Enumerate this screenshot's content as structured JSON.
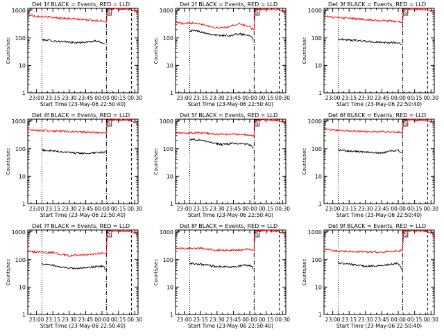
{
  "figure": {
    "background": "#ffffff",
    "events_color": "#000000",
    "lld_color": "#ff0000",
    "axis_color": "#000000"
  },
  "chart_data": [
    {
      "type": "line",
      "title": "Det 1f BLACK = Events, RED = LLD",
      "xlabel": "Start Time (23-May-06 22:50:40)",
      "ylabel": "Counts/sec",
      "yscale": "log",
      "ylim": [
        1,
        1200
      ],
      "xlim": [
        "22:52",
        "00:33"
      ],
      "xticks": [
        "23:00",
        "23:15",
        "23:30",
        "23:45",
        "00:00",
        "00:15",
        "00:30"
      ],
      "yticks": [
        "1",
        "10",
        "100",
        "1000"
      ],
      "marker_label": "S",
      "vlines": [
        {
          "time": "23:05",
          "style": "dotted"
        },
        {
          "time": "00:04",
          "style": "dash-dot"
        },
        {
          "time": "00:27",
          "style": "dashed"
        }
      ],
      "series": [
        {
          "name": "Events",
          "color": "#000000",
          "x": [
            "23:05",
            "23:20",
            "23:35",
            "23:40",
            "23:50",
            "23:55",
            "00:00",
            "00:01",
            "00:02",
            "00:03"
          ],
          "y": [
            86,
            75,
            68,
            68,
            74,
            77,
            66,
            63,
            62,
            60
          ]
        },
        {
          "name": "LLD",
          "color": "#ff0000",
          "x": [
            "22:52",
            "23:00",
            "23:15",
            "23:30",
            "23:45",
            "00:00",
            "00:02",
            "00:04",
            "00:05",
            "00:06",
            "00:14",
            "00:16",
            "00:27",
            "00:28",
            "00:31",
            "00:33"
          ],
          "y": [
            700,
            620,
            560,
            500,
            460,
            420,
            400,
            380,
            1050,
            1130,
            1130,
            1100,
            1100,
            1000,
            900,
            760
          ]
        }
      ]
    },
    {
      "type": "line",
      "title": "Det 2f BLACK = Events, RED = LLD",
      "xlabel": "Start Time (23-May-06 22:50:40)",
      "ylabel": "Counts/sec",
      "yscale": "log",
      "ylim": [
        1,
        1200
      ],
      "xlim": [
        "22:52",
        "00:33"
      ],
      "xticks": [
        "23:00",
        "23:15",
        "23:30",
        "23:45",
        "00:00",
        "00:15",
        "00:30"
      ],
      "yticks": [
        "1",
        "10",
        "100",
        "1000"
      ],
      "marker_label": "S",
      "vlines": [
        {
          "time": "23:05",
          "style": "dotted"
        },
        {
          "time": "00:04",
          "style": "dash-dot"
        },
        {
          "time": "00:27",
          "style": "dashed"
        }
      ],
      "series": [
        {
          "name": "Events",
          "color": "#000000",
          "x": [
            "23:05",
            "23:10",
            "23:20",
            "23:30",
            "23:40",
            "23:50",
            "00:00",
            "00:02",
            "00:03"
          ],
          "y": [
            180,
            190,
            150,
            125,
            120,
            140,
            125,
            110,
            80
          ]
        },
        {
          "name": "LLD",
          "color": "#ff0000",
          "x": [
            "22:52",
            "23:00",
            "23:10",
            "23:20",
            "23:30",
            "23:40",
            "23:50",
            "00:00",
            "00:02",
            "00:04",
            "00:05",
            "00:06",
            "00:14",
            "00:16",
            "00:27",
            "00:28",
            "00:31",
            "00:33"
          ],
          "y": [
            370,
            330,
            360,
            290,
            230,
            250,
            330,
            260,
            210,
            200,
            1050,
            1130,
            1130,
            1100,
            1100,
            1000,
            900,
            760
          ]
        }
      ]
    },
    {
      "type": "line",
      "title": "Det 3f BLACK = Events, RED = LLD",
      "xlabel": "Start Time (23-May-06 22:50:40)",
      "ylabel": "Counts/sec",
      "yscale": "log",
      "ylim": [
        1,
        1200
      ],
      "xlim": [
        "22:52",
        "00:33"
      ],
      "xticks": [
        "23:00",
        "23:15",
        "23:30",
        "23:45",
        "00:00",
        "00:15",
        "00:30"
      ],
      "yticks": [
        "1",
        "10",
        "100",
        "1000"
      ],
      "marker_label": "S",
      "vlines": [
        {
          "time": "23:05",
          "style": "dotted"
        },
        {
          "time": "00:04",
          "style": "dash-dot"
        },
        {
          "time": "00:27",
          "style": "dashed"
        }
      ],
      "series": [
        {
          "name": "Events",
          "color": "#000000",
          "x": [
            "23:05",
            "23:20",
            "23:35",
            "23:45",
            "23:55",
            "00:00",
            "00:02",
            "00:03"
          ],
          "y": [
            90,
            82,
            72,
            68,
            68,
            66,
            60,
            55
          ]
        },
        {
          "name": "LLD",
          "color": "#ff0000",
          "x": [
            "22:52",
            "23:00",
            "23:15",
            "23:30",
            "23:45",
            "00:00",
            "00:02",
            "00:04",
            "00:05",
            "00:06",
            "00:14",
            "00:16",
            "00:27",
            "00:28",
            "00:31",
            "00:33"
          ],
          "y": [
            650,
            560,
            520,
            470,
            430,
            390,
            380,
            350,
            1050,
            1130,
            1130,
            1100,
            1100,
            1000,
            900,
            760
          ]
        }
      ]
    },
    {
      "type": "line",
      "title": "Det 4f BLACK = Events, RED = LLD",
      "xlabel": "Start Time (23-May-06 22:50:40)",
      "ylabel": "Counts/sec",
      "yscale": "log",
      "ylim": [
        1,
        1200
      ],
      "xlim": [
        "22:52",
        "00:33"
      ],
      "xticks": [
        "23:00",
        "23:15",
        "23:30",
        "23:45",
        "00:00",
        "00:15",
        "00:30"
      ],
      "yticks": [
        "1",
        "10",
        "100",
        "1000"
      ],
      "marker_label": "S",
      "vlines": [
        {
          "time": "23:05",
          "style": "dotted"
        },
        {
          "time": "00:04",
          "style": "dash-dot"
        },
        {
          "time": "00:27",
          "style": "dashed"
        }
      ],
      "series": [
        {
          "name": "Events",
          "color": "#000000",
          "x": [
            "23:05",
            "23:20",
            "23:35",
            "23:45",
            "23:55",
            "00:00",
            "00:02",
            "00:03"
          ],
          "y": [
            90,
            80,
            70,
            68,
            70,
            75,
            72,
            85
          ]
        },
        {
          "name": "LLD",
          "color": "#ff0000",
          "x": [
            "22:52",
            "23:00",
            "23:15",
            "23:30",
            "23:45",
            "00:00",
            "00:02",
            "00:04",
            "00:05",
            "00:06",
            "00:14",
            "00:16",
            "00:27",
            "00:28",
            "00:31",
            "00:33"
          ],
          "y": [
            520,
            470,
            450,
            420,
            400,
            390,
            380,
            360,
            1050,
            1130,
            1130,
            1100,
            1100,
            1000,
            900,
            760
          ]
        }
      ]
    },
    {
      "type": "line",
      "title": "Det 5f BLACK = Events, RED = LLD",
      "xlabel": "Start Time (23-May-06 22:50:40)",
      "ylabel": "Counts/sec",
      "yscale": "log",
      "ylim": [
        1,
        1200
      ],
      "xlim": [
        "22:52",
        "00:33"
      ],
      "xticks": [
        "23:00",
        "23:15",
        "23:30",
        "23:45",
        "00:00",
        "00:15",
        "00:30"
      ],
      "yticks": [
        "1",
        "10",
        "100",
        "1000"
      ],
      "marker_label": "S",
      "vlines": [
        {
          "time": "23:05",
          "style": "dotted"
        },
        {
          "time": "00:04",
          "style": "dash-dot"
        },
        {
          "time": "00:27",
          "style": "dashed"
        }
      ],
      "series": [
        {
          "name": "Events",
          "color": "#000000",
          "x": [
            "23:05",
            "23:15",
            "23:25",
            "23:35",
            "23:45",
            "23:55",
            "00:00",
            "00:02",
            "00:03"
          ],
          "y": [
            220,
            210,
            170,
            140,
            160,
            150,
            140,
            120,
            100
          ]
        },
        {
          "name": "LLD",
          "color": "#ff0000",
          "x": [
            "22:52",
            "23:00",
            "23:15",
            "23:30",
            "23:45",
            "00:00",
            "00:02",
            "00:04",
            "00:05",
            "00:06",
            "00:14",
            "00:16",
            "00:27",
            "00:28",
            "00:31",
            "00:33"
          ],
          "y": [
            400,
            380,
            380,
            340,
            340,
            320,
            300,
            290,
            1050,
            1130,
            1130,
            1100,
            1100,
            1000,
            900,
            760
          ]
        }
      ]
    },
    {
      "type": "line",
      "title": "Det 6f BLACK = Events, RED = LLD",
      "xlabel": "Start Time (23-May-06 22:50:40)",
      "ylabel": "Counts/sec",
      "yscale": "log",
      "ylim": [
        1,
        1200
      ],
      "xlim": [
        "22:52",
        "00:33"
      ],
      "xticks": [
        "23:00",
        "23:15",
        "23:30",
        "23:45",
        "00:00",
        "00:15",
        "00:30"
      ],
      "yticks": [
        "1",
        "10",
        "100",
        "1000"
      ],
      "marker_label": "S",
      "vlines": [
        {
          "time": "23:05",
          "style": "dotted"
        },
        {
          "time": "00:04",
          "style": "dash-dot"
        },
        {
          "time": "00:27",
          "style": "dashed"
        }
      ],
      "series": [
        {
          "name": "Events",
          "color": "#000000",
          "x": [
            "23:05",
            "23:20",
            "23:35",
            "23:45",
            "23:55",
            "00:00",
            "00:02",
            "00:03"
          ],
          "y": [
            90,
            80,
            75,
            70,
            85,
            88,
            75,
            70
          ]
        },
        {
          "name": "LLD",
          "color": "#ff0000",
          "x": [
            "22:52",
            "23:00",
            "23:15",
            "23:30",
            "23:45",
            "00:00",
            "00:02",
            "00:04",
            "00:05",
            "00:06",
            "00:14",
            "00:16",
            "00:27",
            "00:28",
            "00:31",
            "00:33"
          ],
          "y": [
            560,
            480,
            450,
            420,
            420,
            400,
            390,
            380,
            1050,
            1130,
            1130,
            1100,
            1100,
            1000,
            900,
            760
          ]
        }
      ]
    },
    {
      "type": "line",
      "title": "Det 7f BLACK = Events, RED = LLD",
      "xlabel": "Start Time (23-May-06 22:50:40)",
      "ylabel": "Counts/sec",
      "yscale": "log",
      "ylim": [
        1,
        1200
      ],
      "xlim": [
        "22:52",
        "00:33"
      ],
      "xticks": [
        "23:00",
        "23:15",
        "23:30",
        "23:45",
        "00:00",
        "00:15",
        "00:30"
      ],
      "yticks": [
        "1",
        "10",
        "100",
        "1000"
      ],
      "marker_label": "S",
      "vlines": [
        {
          "time": "23:05",
          "style": "dotted"
        },
        {
          "time": "00:04",
          "style": "dash-dot"
        },
        {
          "time": "00:27",
          "style": "dashed"
        }
      ],
      "series": [
        {
          "name": "Events",
          "color": "#000000",
          "x": [
            "23:05",
            "23:15",
            "23:30",
            "23:45",
            "23:55",
            "00:00",
            "00:02",
            "00:03"
          ],
          "y": [
            70,
            62,
            48,
            50,
            55,
            58,
            55,
            40
          ]
        },
        {
          "name": "LLD",
          "color": "#ff0000",
          "x": [
            "22:52",
            "23:00",
            "23:15",
            "23:30",
            "23:45",
            "00:00",
            "00:02",
            "00:04",
            "00:05",
            "00:06",
            "00:14",
            "00:16",
            "00:27",
            "00:28",
            "00:31",
            "00:33"
          ],
          "y": [
            200,
            190,
            180,
            140,
            150,
            170,
            175,
            180,
            1050,
            1130,
            1130,
            1100,
            1100,
            1000,
            900,
            760
          ]
        }
      ]
    },
    {
      "type": "line",
      "title": "Det 8f BLACK = Events, RED = LLD",
      "xlabel": "Start Time (23-May-06 22:50:40)",
      "ylabel": "Counts/sec",
      "yscale": "log",
      "ylim": [
        1,
        1200
      ],
      "xlim": [
        "22:52",
        "00:33"
      ],
      "xticks": [
        "23:00",
        "23:15",
        "23:30",
        "23:45",
        "00:00",
        "00:15",
        "00:30"
      ],
      "yticks": [
        "1",
        "10",
        "100",
        "1000"
      ],
      "marker_label": "S",
      "vlines": [
        {
          "time": "23:05",
          "style": "dotted"
        },
        {
          "time": "00:04",
          "style": "dash-dot"
        },
        {
          "time": "00:27",
          "style": "dashed"
        }
      ],
      "series": [
        {
          "name": "Events",
          "color": "#000000",
          "x": [
            "23:05",
            "23:15",
            "23:30",
            "23:45",
            "23:55",
            "00:00",
            "00:02",
            "00:03"
          ],
          "y": [
            72,
            68,
            55,
            55,
            62,
            60,
            58,
            45
          ]
        },
        {
          "name": "LLD",
          "color": "#ff0000",
          "x": [
            "22:52",
            "23:00",
            "23:15",
            "23:30",
            "23:45",
            "00:00",
            "00:02",
            "00:04",
            "00:05",
            "00:06",
            "00:14",
            "00:16",
            "00:27",
            "00:28",
            "00:31",
            "00:33"
          ],
          "y": [
            260,
            250,
            260,
            220,
            220,
            240,
            230,
            210,
            1050,
            1130,
            1130,
            1100,
            1100,
            1000,
            900,
            760
          ]
        }
      ]
    },
    {
      "type": "line",
      "title": "Det 9f BLACK = Events, RED = LLD",
      "xlabel": "Start Time (23-May-06 22:50:40)",
      "ylabel": "Counts/sec",
      "yscale": "log",
      "ylim": [
        1,
        1200
      ],
      "xlim": [
        "22:52",
        "00:33"
      ],
      "xticks": [
        "23:00",
        "23:15",
        "23:30",
        "23:45",
        "00:00",
        "00:15",
        "00:30"
      ],
      "yticks": [
        "1",
        "10",
        "100",
        "1000"
      ],
      "marker_label": "S",
      "vlines": [
        {
          "time": "23:05",
          "style": "dotted"
        },
        {
          "time": "00:04",
          "style": "dash-dot"
        },
        {
          "time": "00:27",
          "style": "dashed"
        }
      ],
      "series": [
        {
          "name": "Events",
          "color": "#000000",
          "x": [
            "23:05",
            "23:15",
            "23:30",
            "23:45",
            "23:55",
            "00:00",
            "00:02",
            "00:03"
          ],
          "y": [
            75,
            68,
            58,
            60,
            70,
            72,
            55,
            45
          ]
        },
        {
          "name": "LLD",
          "color": "#ff0000",
          "x": [
            "22:52",
            "23:00",
            "23:15",
            "23:30",
            "23:45",
            "00:00",
            "00:02",
            "00:04",
            "00:05",
            "00:06",
            "00:14",
            "00:16",
            "00:27",
            "00:28",
            "00:31",
            "00:33"
          ],
          "y": [
            240,
            210,
            200,
            195,
            190,
            210,
            215,
            220,
            1050,
            1130,
            1130,
            1100,
            1100,
            1000,
            900,
            760
          ]
        }
      ]
    }
  ]
}
